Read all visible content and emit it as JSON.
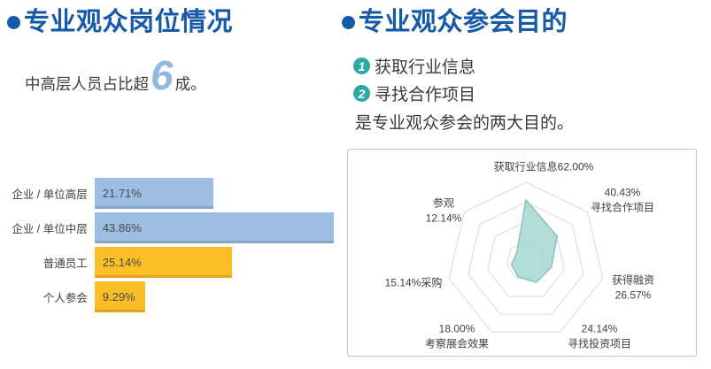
{
  "page": {
    "background": "#ffffff",
    "accent_blue": "#155AA8",
    "light_blue": "#92B8DF",
    "teal": "#2BA8A2",
    "text_dark": "#3A3A3A"
  },
  "left_section": {
    "bullet_icon": "bullet-dot",
    "title": "专业观众岗位情况",
    "subtitle_prefix": "中高层人员占比超",
    "subtitle_big_number": "6",
    "subtitle_suffix": "成。"
  },
  "right_section": {
    "bullet_icon": "bullet-dot",
    "title": "专业观众参会目的",
    "points": [
      {
        "num": "1",
        "text": "获取行业信息"
      },
      {
        "num": "2",
        "text": "寻找合作项目"
      }
    ],
    "conclusion": "是专业观众参会的两大目的。"
  },
  "chart_data": [
    {
      "type": "bar",
      "orientation": "horizontal",
      "title": "专业观众岗位情况",
      "categories": [
        "企业 / 单位高层",
        "企业 / 单位中层",
        "普通员工",
        "个人参会"
      ],
      "values": [
        21.71,
        43.86,
        25.14,
        9.29
      ],
      "value_labels": [
        "21.71%",
        "43.86%",
        "25.14%",
        "9.29%"
      ],
      "bar_colors": [
        "#9CBEE2",
        "#9CBEE2",
        "#FBBE26",
        "#FBBE26"
      ],
      "xlim": [
        0,
        45
      ],
      "grid": false,
      "legend": false
    },
    {
      "type": "radar",
      "title": "专业观众参会目的",
      "categories": [
        "获取行业信息",
        "寻找合作项目",
        "获得融资",
        "寻找投资项目",
        "考察展会效果",
        "采购",
        "参观"
      ],
      "values": [
        62.0,
        40.43,
        26.57,
        24.14,
        18.0,
        15.14,
        12.14
      ],
      "max": 80,
      "ring_count": 4,
      "fill_color": "#A6D7D2",
      "stroke_color": "#82C5BE",
      "grid_color": "#D9D9D9",
      "legend": false,
      "labels": [
        {
          "line1": "获取行业信息62.00%",
          "line2": ""
        },
        {
          "line1": "40.43%",
          "line2": "寻找合作项目"
        },
        {
          "line1": "获得融资",
          "line2": "26.57%"
        },
        {
          "line1": "24.14%",
          "line2": "寻找投资项目"
        },
        {
          "line1": "18.00%",
          "line2": "考察展会效果"
        },
        {
          "line1": "15.14%采购",
          "line2": ""
        },
        {
          "line1": "参观",
          "line2": "12.14%"
        }
      ]
    }
  ]
}
